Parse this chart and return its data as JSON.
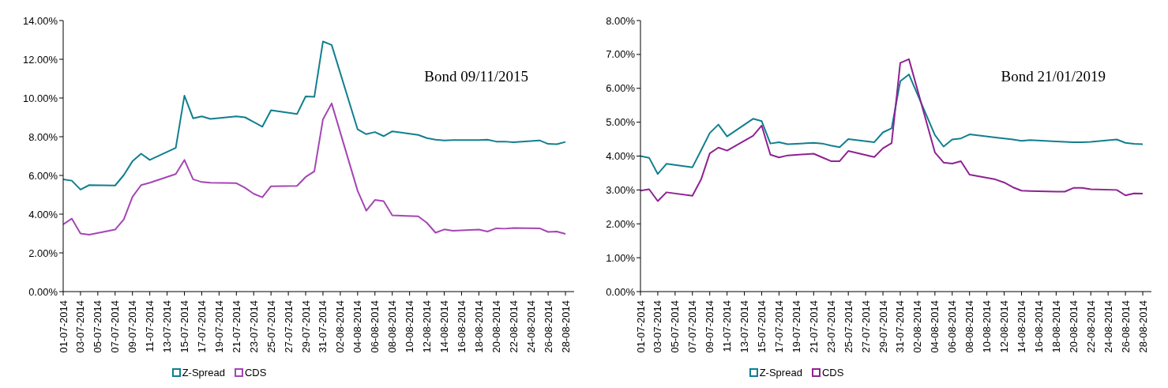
{
  "chart_data": [
    {
      "type": "line",
      "annotations": [
        "Bond 09/11/2015"
      ],
      "legend": "bottom",
      "x": [
        "2014-07-01",
        "2014-07-02",
        "2014-07-03",
        "2014-07-04",
        "2014-07-07",
        "2014-07-08",
        "2014-07-09",
        "2014-07-10",
        "2014-07-11",
        "2014-07-14",
        "2014-07-15",
        "2014-07-16",
        "2014-07-17",
        "2014-07-18",
        "2014-07-21",
        "2014-07-22",
        "2014-07-23",
        "2014-07-24",
        "2014-07-25",
        "2014-07-28",
        "2014-07-29",
        "2014-07-30",
        "2014-07-31",
        "2014-08-01",
        "2014-08-04",
        "2014-08-05",
        "2014-08-06",
        "2014-08-07",
        "2014-08-08",
        "2014-08-11",
        "2014-08-12",
        "2014-08-13",
        "2014-08-14",
        "2014-08-15",
        "2014-08-18",
        "2014-08-19",
        "2014-08-20",
        "2014-08-21",
        "2014-08-22",
        "2014-08-25",
        "2014-08-26",
        "2014-08-27",
        "2014-08-28"
      ],
      "series": [
        {
          "name": "Z-Spread",
          "color": "#117f8e",
          "values": [
            5.8,
            5.73,
            5.27,
            5.5,
            5.48,
            6.02,
            6.73,
            7.12,
            6.8,
            7.42,
            10.12,
            8.95,
            9.05,
            8.92,
            9.05,
            9.0,
            8.76,
            8.52,
            9.37,
            9.17,
            10.08,
            10.06,
            12.92,
            12.74,
            8.38,
            8.13,
            8.24,
            8.03,
            8.28,
            8.09,
            7.93,
            7.85,
            7.81,
            7.83,
            7.83,
            7.85,
            7.75,
            7.75,
            7.71,
            7.81,
            7.63,
            7.61,
            7.73
          ]
        },
        {
          "name": "CDS",
          "color": "#a545b5",
          "values": [
            3.47,
            3.77,
            3.0,
            2.94,
            3.2,
            3.73,
            4.89,
            5.5,
            5.62,
            6.07,
            6.8,
            5.8,
            5.66,
            5.62,
            5.6,
            5.36,
            5.05,
            4.87,
            5.44,
            5.46,
            5.92,
            6.21,
            8.9,
            9.72,
            5.21,
            4.18,
            4.73,
            4.67,
            3.94,
            3.89,
            3.55,
            3.04,
            3.21,
            3.14,
            3.2,
            3.1,
            3.27,
            3.25,
            3.29,
            3.27,
            3.08,
            3.1,
            2.98
          ]
        }
      ],
      "xlim": [
        "2014-07-01",
        "2014-08-29"
      ],
      "xticks": [
        {
          "value": "2014-07-01",
          "label": "01-07-2014"
        },
        {
          "value": "2014-07-03",
          "label": "03-07-2014"
        },
        {
          "value": "2014-07-05",
          "label": "05-07-2014"
        },
        {
          "value": "2014-07-07",
          "label": "07-07-2014"
        },
        {
          "value": "2014-07-09",
          "label": "09-07-2014"
        },
        {
          "value": "2014-07-11",
          "label": "11-07-2014"
        },
        {
          "value": "2014-07-13",
          "label": "13-07-2014"
        },
        {
          "value": "2014-07-15",
          "label": "15-07-2014"
        },
        {
          "value": "2014-07-17",
          "label": "17-07-2014"
        },
        {
          "value": "2014-07-19",
          "label": "19-07-2014"
        },
        {
          "value": "2014-07-21",
          "label": "21-07-2014"
        },
        {
          "value": "2014-07-23",
          "label": "23-07-2014"
        },
        {
          "value": "2014-07-25",
          "label": "25-07-2014"
        },
        {
          "value": "2014-07-27",
          "label": "27-07-2014"
        },
        {
          "value": "2014-07-29",
          "label": "29-07-2014"
        },
        {
          "value": "2014-07-31",
          "label": "31-07-2014"
        },
        {
          "value": "2014-08-02",
          "label": "02-08-2014"
        },
        {
          "value": "2014-08-04",
          "label": "04-08-2014"
        },
        {
          "value": "2014-08-06",
          "label": "06-08-2014"
        },
        {
          "value": "2014-08-08",
          "label": "08-08-2014"
        },
        {
          "value": "2014-08-10",
          "label": "10-08-2014"
        },
        {
          "value": "2014-08-12",
          "label": "12-08-2014"
        },
        {
          "value": "2014-08-14",
          "label": "14-08-2014"
        },
        {
          "value": "2014-08-16",
          "label": "16-08-2014"
        },
        {
          "value": "2014-08-18",
          "label": "18-08-2014"
        },
        {
          "value": "2014-08-20",
          "label": "20-08-2014"
        },
        {
          "value": "2014-08-22",
          "label": "22-08-2014"
        },
        {
          "value": "2014-08-24",
          "label": "24-08-2014"
        },
        {
          "value": "2014-08-26",
          "label": "26-08-2014"
        },
        {
          "value": "2014-08-28",
          "label": "28-08-2014"
        }
      ],
      "ylim": [
        0,
        14
      ],
      "yticks": [
        {
          "value": 0,
          "label": "0.00%"
        },
        {
          "value": 2,
          "label": "2.00%"
        },
        {
          "value": 4,
          "label": "4.00%"
        },
        {
          "value": 6,
          "label": "6.00%"
        },
        {
          "value": 8,
          "label": "8.00%"
        },
        {
          "value": 10,
          "label": "10.00%"
        },
        {
          "value": 12,
          "label": "12.00%"
        },
        {
          "value": 14,
          "label": "14.00%"
        }
      ]
    },
    {
      "type": "line",
      "annotations": [
        "Bond 21/01/2019"
      ],
      "legend": "bottom",
      "x": [
        "2014-07-01",
        "2014-07-02",
        "2014-07-03",
        "2014-07-04",
        "2014-07-07",
        "2014-07-08",
        "2014-07-09",
        "2014-07-10",
        "2014-07-11",
        "2014-07-14",
        "2014-07-15",
        "2014-07-16",
        "2014-07-17",
        "2014-07-18",
        "2014-07-21",
        "2014-07-22",
        "2014-07-23",
        "2014-07-24",
        "2014-07-25",
        "2014-07-28",
        "2014-07-29",
        "2014-07-30",
        "2014-07-31",
        "2014-08-01",
        "2014-08-04",
        "2014-08-05",
        "2014-08-06",
        "2014-08-07",
        "2014-08-08",
        "2014-08-11",
        "2014-08-12",
        "2014-08-13",
        "2014-08-14",
        "2014-08-15",
        "2014-08-18",
        "2014-08-19",
        "2014-08-20",
        "2014-08-21",
        "2014-08-22",
        "2014-08-25",
        "2014-08-26",
        "2014-08-27",
        "2014-08-28"
      ],
      "series": [
        {
          "name": "Z-Spread",
          "color": "#117f8e",
          "values": [
            4.0,
            3.95,
            3.47,
            3.77,
            3.67,
            4.17,
            4.68,
            4.93,
            4.58,
            5.1,
            5.03,
            4.37,
            4.41,
            4.35,
            4.39,
            4.37,
            4.31,
            4.26,
            4.5,
            4.41,
            4.7,
            4.82,
            6.21,
            6.41,
            4.62,
            4.28,
            4.49,
            4.52,
            4.64,
            4.55,
            4.52,
            4.49,
            4.45,
            4.47,
            4.43,
            4.42,
            4.41,
            4.41,
            4.42,
            4.49,
            4.39,
            4.36,
            4.35
          ]
        },
        {
          "name": "CDS",
          "color": "#8e2292",
          "values": [
            2.98,
            3.02,
            2.67,
            2.93,
            2.83,
            3.31,
            4.08,
            4.25,
            4.16,
            4.6,
            4.9,
            4.04,
            3.96,
            4.02,
            4.07,
            3.96,
            3.85,
            3.85,
            4.15,
            3.97,
            4.23,
            4.38,
            6.75,
            6.86,
            4.11,
            3.81,
            3.78,
            3.85,
            3.45,
            3.31,
            3.22,
            3.08,
            2.98,
            2.97,
            2.95,
            2.95,
            3.06,
            3.06,
            3.02,
            3.0,
            2.84,
            2.9,
            2.89
          ]
        }
      ],
      "xlim": [
        "2014-07-01",
        "2014-08-29"
      ],
      "xticks": [
        {
          "value": "2014-07-01",
          "label": "01-07-2014"
        },
        {
          "value": "2014-07-03",
          "label": "03-07-2014"
        },
        {
          "value": "2014-07-05",
          "label": "05-07-2014"
        },
        {
          "value": "2014-07-07",
          "label": "07-07-2014"
        },
        {
          "value": "2014-07-09",
          "label": "09-07-2014"
        },
        {
          "value": "2014-07-11",
          "label": "11-07-2014"
        },
        {
          "value": "2014-07-13",
          "label": "13-07-2014"
        },
        {
          "value": "2014-07-15",
          "label": "15-07-2014"
        },
        {
          "value": "2014-07-17",
          "label": "17-07-2014"
        },
        {
          "value": "2014-07-19",
          "label": "19-07-2014"
        },
        {
          "value": "2014-07-21",
          "label": "21-07-2014"
        },
        {
          "value": "2014-07-23",
          "label": "23-07-2014"
        },
        {
          "value": "2014-07-25",
          "label": "25-07-2014"
        },
        {
          "value": "2014-07-27",
          "label": "27-07-2014"
        },
        {
          "value": "2014-07-29",
          "label": "29-07-2014"
        },
        {
          "value": "2014-07-31",
          "label": "31-07-2014"
        },
        {
          "value": "2014-08-02",
          "label": "02-08-2014"
        },
        {
          "value": "2014-08-04",
          "label": "04-08-2014"
        },
        {
          "value": "2014-08-06",
          "label": "06-08-2014"
        },
        {
          "value": "2014-08-08",
          "label": "08-08-2014"
        },
        {
          "value": "2014-08-10",
          "label": "10-08-2014"
        },
        {
          "value": "2014-08-12",
          "label": "12-08-2014"
        },
        {
          "value": "2014-08-14",
          "label": "14-08-2014"
        },
        {
          "value": "2014-08-16",
          "label": "16-08-2014"
        },
        {
          "value": "2014-08-18",
          "label": "18-08-2014"
        },
        {
          "value": "2014-08-20",
          "label": "20-08-2014"
        },
        {
          "value": "2014-08-22",
          "label": "22-08-2014"
        },
        {
          "value": "2014-08-24",
          "label": "24-08-2014"
        },
        {
          "value": "2014-08-26",
          "label": "26-08-2014"
        },
        {
          "value": "2014-08-28",
          "label": "28-08-2014"
        }
      ],
      "ylim": [
        0,
        8
      ],
      "yticks": [
        {
          "value": 0,
          "label": "0.00%"
        },
        {
          "value": 1,
          "label": "1.00%"
        },
        {
          "value": 2,
          "label": "2.00%"
        },
        {
          "value": 3,
          "label": "3.00%"
        },
        {
          "value": 4,
          "label": "4.00%"
        },
        {
          "value": 5,
          "label": "5.00%"
        },
        {
          "value": 6,
          "label": "6.00%"
        },
        {
          "value": 7,
          "label": "7.00%"
        },
        {
          "value": 8,
          "label": "8.00%"
        }
      ]
    }
  ]
}
